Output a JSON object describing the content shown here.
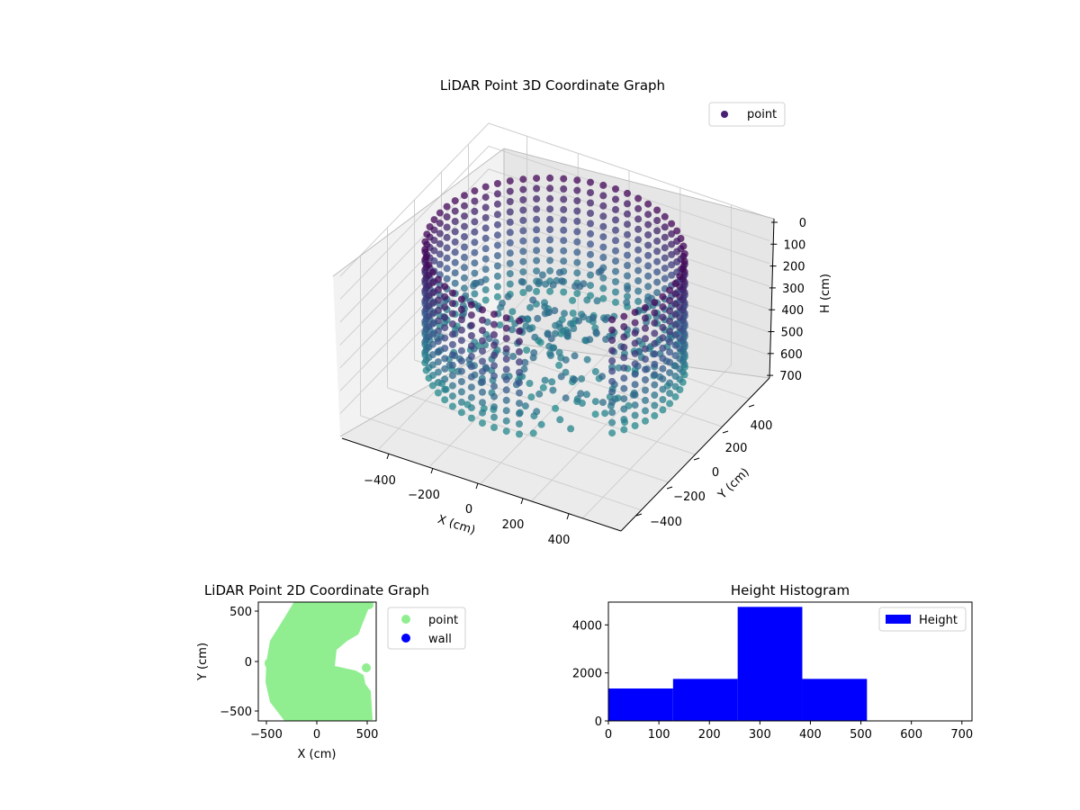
{
  "chart_data": [
    {
      "type": "scatter3d",
      "title": "LiDAR Point 3D Coordinate Graph",
      "xlabel": "X (cm)",
      "ylabel": "Y (cm)",
      "zlabel": "H (cm)",
      "x_ticks": [
        "−400",
        "−200",
        "0",
        "200",
        "400"
      ],
      "y_ticks": [
        "−400",
        "−200",
        "0",
        "200",
        "400"
      ],
      "z_ticks": [
        "0",
        "100",
        "200",
        "300",
        "400",
        "500",
        "600",
        "700"
      ],
      "xlim": [
        -550,
        550
      ],
      "ylim": [
        -550,
        550
      ],
      "zlim": [
        0,
        700
      ],
      "z_inverted": true,
      "grid": true,
      "legend": {
        "entries": [
          "point"
        ],
        "placement": "upper-right"
      },
      "colormap": [
        "#440154",
        "#3b528b",
        "#21918c"
      ],
      "series": [
        {
          "name": "point",
          "color": "#482173",
          "shape": "cylindrical wall of points, radius ~450 cm, heights 0-520 cm, plus interior floor points"
        }
      ]
    },
    {
      "type": "scatter",
      "title": "LiDAR Point 2D Coordinate Graph",
      "xlabel": "X (cm)",
      "ylabel": "Y (cm)",
      "x_ticks": [
        "−500",
        "0",
        "500"
      ],
      "y_ticks": [
        "−500",
        "0",
        "500"
      ],
      "xlim": [
        -580,
        580
      ],
      "ylim": [
        -590,
        590
      ],
      "legend": {
        "entries": [
          "point",
          "wall"
        ],
        "placement": "outside-right"
      },
      "series": [
        {
          "name": "point",
          "color": "#90ee90"
        },
        {
          "name": "wall",
          "color": "#0000ff"
        }
      ]
    },
    {
      "type": "bar",
      "title": "Height Histogram",
      "x_ticks": [
        "0",
        "100",
        "200",
        "300",
        "400",
        "500",
        "600",
        "700"
      ],
      "y_ticks": [
        "0",
        "2000",
        "4000"
      ],
      "xlim": [
        0,
        720
      ],
      "ylim": [
        0,
        4950
      ],
      "legend": {
        "entries": [
          "Height"
        ],
        "placement": "upper-right"
      },
      "bins": [
        {
          "x0": 0,
          "x1": 128,
          "count": 1350
        },
        {
          "x0": 128,
          "x1": 256,
          "count": 1750
        },
        {
          "x0": 256,
          "x1": 384,
          "count": 4750
        },
        {
          "x0": 384,
          "x1": 512,
          "count": 1750
        },
        {
          "x0": 512,
          "x1": 640,
          "count": 0
        },
        {
          "x0": 640,
          "x1": 720,
          "count": 0
        }
      ],
      "series": [
        {
          "name": "Height",
          "color": "#0000ff"
        }
      ]
    }
  ]
}
